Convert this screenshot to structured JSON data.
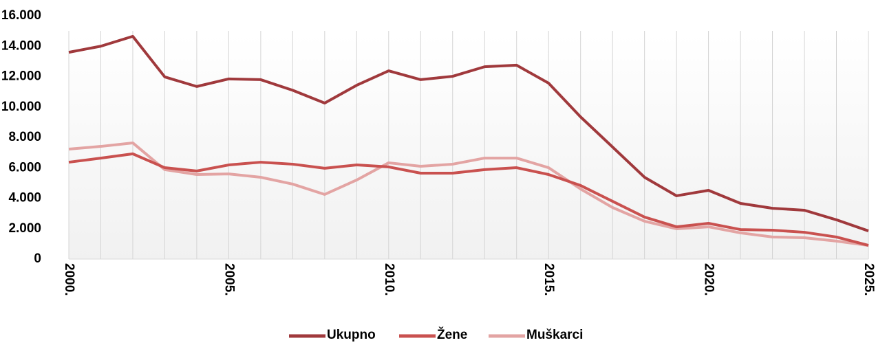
{
  "chart_data": {
    "type": "line",
    "x": [
      2000,
      2001,
      2002,
      2003,
      2004,
      2005,
      2006,
      2007,
      2008,
      2009,
      2010,
      2011,
      2012,
      2013,
      2014,
      2015,
      2016,
      2017,
      2018,
      2019,
      2020,
      2021,
      2022,
      2023,
      2024,
      2025
    ],
    "series": [
      {
        "name": "Ukupno",
        "color": "#a0393c",
        "values": [
          13600,
          14000,
          14650,
          11980,
          11350,
          11850,
          11800,
          11100,
          10260,
          11430,
          12380,
          11800,
          12020,
          12650,
          12750,
          11570,
          9350,
          7370,
          5380,
          4160,
          4520,
          3660,
          3340,
          3210,
          2580,
          1850
        ]
      },
      {
        "name": "Žene",
        "color": "#c9514f",
        "values": [
          6370,
          6640,
          6920,
          6010,
          5790,
          6190,
          6370,
          6240,
          5970,
          6190,
          6060,
          5650,
          5650,
          5880,
          6010,
          5560,
          4840,
          3800,
          2760,
          2120,
          2350,
          1940,
          1900,
          1760,
          1450,
          900
        ]
      },
      {
        "name": "Muškarci",
        "color": "#e3a4a3",
        "values": [
          7230,
          7410,
          7640,
          5880,
          5560,
          5600,
          5380,
          4930,
          4250,
          5200,
          6330,
          6100,
          6240,
          6640,
          6640,
          6010,
          4610,
          3390,
          2490,
          1990,
          2120,
          1720,
          1450,
          1400,
          1180,
          900
        ]
      }
    ],
    "xlim": [
      2000,
      2025
    ],
    "xticks": [
      {
        "value": 2000,
        "label": "2000."
      },
      {
        "value": 2005,
        "label": "2005."
      },
      {
        "value": 2010,
        "label": "2010."
      },
      {
        "value": 2015,
        "label": "2015."
      },
      {
        "value": 2020,
        "label": "2020."
      },
      {
        "value": 2025,
        "label": "2025."
      }
    ],
    "ylim": [
      0,
      16000
    ],
    "yticks": [
      0,
      {
        "value": 2000,
        "label": "2.000"
      },
      {
        "value": 4000,
        "label": "4.000"
      },
      {
        "value": 6000,
        "label": "6.000"
      },
      {
        "value": 8000,
        "label": "8.000"
      },
      {
        "value": 10000,
        "label": "10.000"
      },
      {
        "value": 12000,
        "label": "12.000"
      },
      {
        "value": 14000,
        "label": "14.000"
      },
      {
        "value": 16000,
        "label": "16.000"
      }
    ],
    "grid": "x",
    "legend": "bottom"
  }
}
